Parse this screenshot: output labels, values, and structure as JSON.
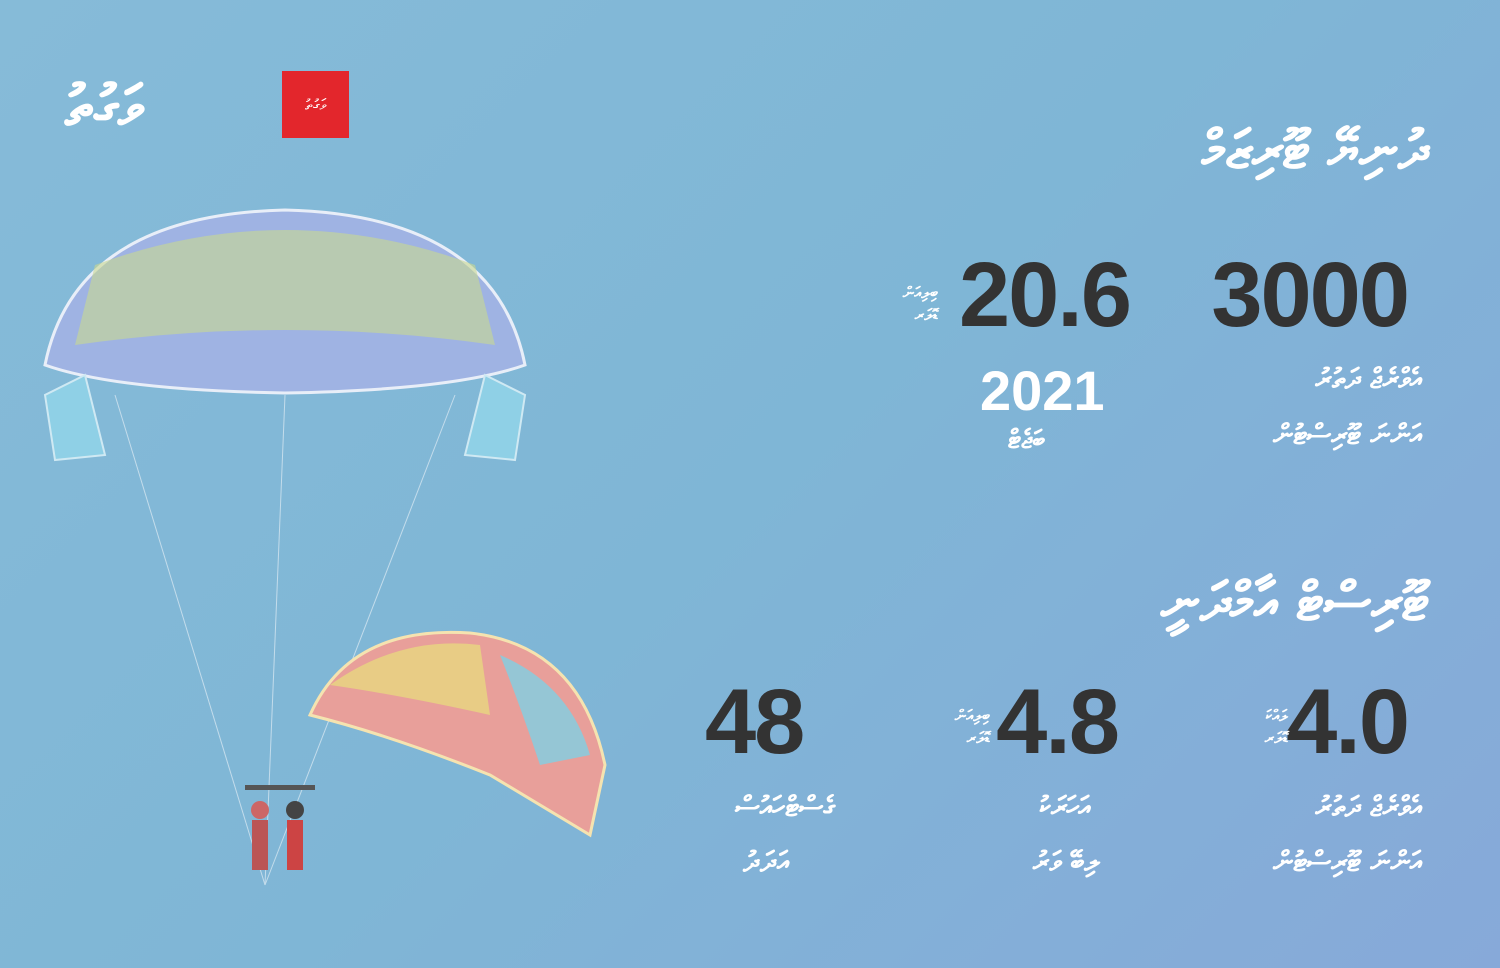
{
  "logo": {
    "text": "ވަގުތު",
    "badge": "ވަގުތު",
    "badge_color": "#e3262c"
  },
  "section1": {
    "title": "ދުނިޔޭ ޓޫރިޒަމް",
    "stat1": {
      "value": "3000",
      "label_line1": "އެވްރެޖް ދަތުރު",
      "label_line2": "އަންނަ ޓޫރިސްޓުން"
    },
    "stat2": {
      "value": "20.6",
      "unit": "ބިލިއަން ޑޮލަރ",
      "year": "2021",
      "year_label": "ބަޖެޓް"
    }
  },
  "section2": {
    "title": "ޓޫރިސްޓް އާމްދަނީ",
    "stat1": {
      "value": "4.0",
      "unit": "ލައްކަ ޑޮލަރ",
      "label_line1": "އެވްރެޖް ދަތުރު",
      "label_line2": "އަންނަ ޓޫރިސްޓުން"
    },
    "stat2": {
      "value": "4.8",
      "unit": "ބިލިއަން ޑޮލަރ",
      "label_line1": "އަހަރަކު",
      "label_line2": "ލިބޭ ވަރު"
    },
    "stat3": {
      "value": "48",
      "label_line1": "ގެސްޓްހައުސް",
      "label_line2": "އަދަދު"
    }
  },
  "colors": {
    "background": "#80b7d6",
    "number": "#333333",
    "text": "#ffffff"
  }
}
